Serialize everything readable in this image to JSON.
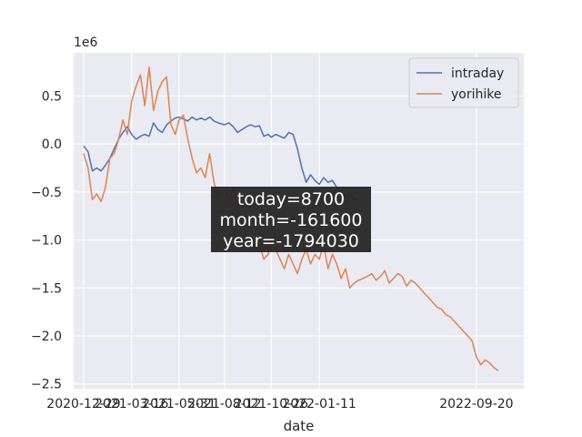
{
  "chart_data": {
    "type": "line",
    "title": "",
    "xlabel": "date",
    "ylabel": "",
    "y_offset_label": "1e6",
    "ylim": [
      -2.55,
      0.95
    ],
    "xlim": [
      "2020-12-13",
      "2022-12-05"
    ],
    "x_ticks": [
      "2020-12-29",
      "2021-03-16",
      "2021-05-31",
      "2021-08-12",
      "2021-10-26",
      "2022-01-11",
      "2022-09-20"
    ],
    "y_ticks": [
      0.5,
      0.0,
      -0.5,
      -1.0,
      -1.5,
      -2.0,
      -2.5
    ],
    "y_tick_labels": [
      "0.5",
      "0.0",
      "−0.5",
      "−1.0",
      "−1.5",
      "−2.0",
      "−2.5"
    ],
    "grid": true,
    "legend_position": "upper-right",
    "colors": {
      "intraday": "#4c72b0",
      "yorihike": "#dd8452",
      "background": "#eaeaf2",
      "grid": "#ffffff",
      "annotation_bg": "#262626"
    },
    "annotation": {
      "lines": [
        "today=8700",
        "month=-161600",
        "year=-1794030"
      ]
    },
    "series": [
      {
        "name": "intraday",
        "color": "#4c72b0",
        "x": [
          "2020-12-29",
          "2021-01-05",
          "2021-01-12",
          "2021-01-19",
          "2021-01-26",
          "2021-02-02",
          "2021-02-09",
          "2021-02-16",
          "2021-02-23",
          "2021-03-02",
          "2021-03-09",
          "2021-03-16",
          "2021-03-23",
          "2021-03-30",
          "2021-04-06",
          "2021-04-13",
          "2021-04-20",
          "2021-04-27",
          "2021-05-04",
          "2021-05-11",
          "2021-05-18",
          "2021-05-25",
          "2021-05-31",
          "2021-06-07",
          "2021-06-14",
          "2021-06-21",
          "2021-06-28",
          "2021-07-05",
          "2021-07-12",
          "2021-07-19",
          "2021-07-26",
          "2021-08-02",
          "2021-08-12",
          "2021-08-19",
          "2021-08-26",
          "2021-09-02",
          "2021-09-09",
          "2021-09-16",
          "2021-09-23",
          "2021-09-30",
          "2021-10-07",
          "2021-10-14",
          "2021-10-21",
          "2021-10-26",
          "2021-11-02",
          "2021-11-09",
          "2021-11-16",
          "2021-11-23",
          "2021-11-30",
          "2021-12-07",
          "2021-12-14",
          "2021-12-21",
          "2021-12-28",
          "2022-01-04",
          "2022-01-11",
          "2022-01-18",
          "2022-01-25",
          "2022-02-01",
          "2022-02-08",
          "2022-02-15",
          "2022-02-22",
          "2022-03-01",
          "2022-03-08",
          "2022-03-15"
        ],
        "values": [
          -0.02,
          -0.08,
          -0.28,
          -0.25,
          -0.28,
          -0.22,
          -0.15,
          -0.05,
          0.05,
          0.12,
          0.18,
          0.1,
          0.05,
          0.08,
          0.1,
          0.08,
          0.22,
          0.15,
          0.12,
          0.2,
          0.24,
          0.27,
          0.28,
          0.26,
          0.24,
          0.28,
          0.25,
          0.27,
          0.25,
          0.28,
          0.24,
          0.22,
          0.2,
          0.22,
          0.18,
          0.12,
          0.15,
          0.18,
          0.2,
          0.18,
          0.19,
          0.08,
          0.1,
          0.07,
          0.1,
          0.08,
          0.06,
          0.12,
          0.1,
          -0.05,
          -0.25,
          -0.4,
          -0.32,
          -0.38,
          -0.42,
          -0.35,
          -0.4,
          -0.38,
          -0.45,
          -0.52,
          -0.55,
          -0.5,
          -0.58,
          -0.57
        ]
      },
      {
        "name": "yorihike",
        "color": "#dd8452",
        "x": [
          "2020-12-29",
          "2021-01-05",
          "2021-01-12",
          "2021-01-19",
          "2021-01-26",
          "2021-02-02",
          "2021-02-09",
          "2021-02-16",
          "2021-02-23",
          "2021-03-02",
          "2021-03-09",
          "2021-03-16",
          "2021-03-23",
          "2021-03-30",
          "2021-04-06",
          "2021-04-13",
          "2021-04-20",
          "2021-04-27",
          "2021-05-04",
          "2021-05-11",
          "2021-05-18",
          "2021-05-25",
          "2021-05-31",
          "2021-06-07",
          "2021-06-14",
          "2021-06-21",
          "2021-06-28",
          "2021-07-05",
          "2021-07-12",
          "2021-07-19",
          "2021-07-26",
          "2021-08-02",
          "2021-08-12",
          "2021-08-19",
          "2021-08-26",
          "2021-09-02",
          "2021-09-09",
          "2021-09-16",
          "2021-09-23",
          "2021-09-30",
          "2021-10-07",
          "2021-10-14",
          "2021-10-21",
          "2021-10-26",
          "2021-11-02",
          "2021-11-09",
          "2021-11-16",
          "2021-11-23",
          "2021-11-30",
          "2021-12-07",
          "2021-12-14",
          "2021-12-21",
          "2021-12-28",
          "2022-01-04",
          "2022-01-11",
          "2022-01-18",
          "2022-01-25",
          "2022-02-01",
          "2022-02-08",
          "2022-02-15",
          "2022-02-22",
          "2022-03-01",
          "2022-03-08",
          "2022-03-15",
          "2022-03-22",
          "2022-03-29",
          "2022-04-05",
          "2022-04-12",
          "2022-04-19",
          "2022-04-26",
          "2022-05-03",
          "2022-05-10",
          "2022-05-17",
          "2022-05-24",
          "2022-05-31",
          "2022-06-07",
          "2022-06-14",
          "2022-06-21",
          "2022-06-28",
          "2022-07-05",
          "2022-07-12",
          "2022-07-19",
          "2022-07-26",
          "2022-08-02",
          "2022-08-09",
          "2022-08-16",
          "2022-08-23",
          "2022-08-30",
          "2022-09-06",
          "2022-09-13",
          "2022-09-20",
          "2022-09-27",
          "2022-10-04",
          "2022-10-11",
          "2022-10-18",
          "2022-10-25"
        ],
        "values": [
          -0.1,
          -0.25,
          -0.58,
          -0.52,
          -0.6,
          -0.45,
          -0.15,
          -0.1,
          0.05,
          0.25,
          0.1,
          0.45,
          0.6,
          0.72,
          0.4,
          0.8,
          0.35,
          0.55,
          0.65,
          0.7,
          0.2,
          0.1,
          0.25,
          0.3,
          0.05,
          -0.15,
          -0.3,
          -0.25,
          -0.35,
          -0.1,
          -0.4,
          -0.55,
          -0.48,
          -0.6,
          -0.45,
          -0.7,
          -0.8,
          -0.95,
          -1.05,
          -1.1,
          -1.05,
          -1.2,
          -1.15,
          -1.0,
          -1.1,
          -1.2,
          -1.3,
          -1.15,
          -1.25,
          -1.35,
          -1.2,
          -1.1,
          -1.25,
          -1.15,
          -1.2,
          -1.05,
          -1.3,
          -1.15,
          -1.25,
          -1.4,
          -1.3,
          -1.5,
          -1.45,
          -1.42,
          -1.4,
          -1.38,
          -1.35,
          -1.42,
          -1.38,
          -1.32,
          -1.45,
          -1.4,
          -1.35,
          -1.38,
          -1.48,
          -1.42,
          -1.45,
          -1.5,
          -1.55,
          -1.6,
          -1.65,
          -1.7,
          -1.72,
          -1.78,
          -1.8,
          -1.85,
          -1.9,
          -1.95,
          -2.0,
          -2.05,
          -2.22,
          -2.3,
          -2.25,
          -2.28,
          -2.33,
          -2.36
        ]
      }
    ]
  }
}
